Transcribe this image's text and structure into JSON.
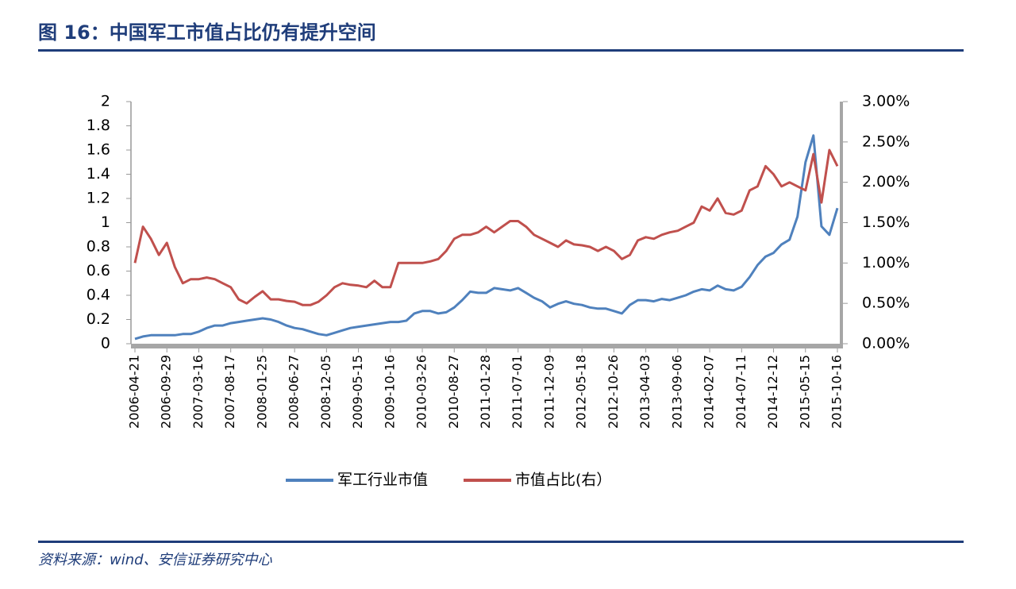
{
  "title": "图 16：中国军工市值占比仍有提升空间",
  "source": "资料来源：wind、安信证券研究中心",
  "chart_data": {
    "type": "line",
    "categories": [
      "2006-04-21",
      null,
      null,
      null,
      "2006-09-29",
      null,
      null,
      null,
      "2007-03-16",
      null,
      null,
      null,
      "2007-08-17",
      null,
      null,
      null,
      "2008-01-25",
      null,
      null,
      null,
      "2008-06-27",
      null,
      null,
      null,
      "2008-12-05",
      null,
      null,
      null,
      "2009-05-15",
      null,
      null,
      null,
      "2009-10-16",
      null,
      null,
      null,
      "2010-03-26",
      null,
      null,
      null,
      "2010-08-27",
      null,
      null,
      null,
      "2011-01-28",
      null,
      null,
      null,
      "2011-07-01",
      null,
      null,
      null,
      "2011-12-09",
      null,
      null,
      null,
      "2012-05-18",
      null,
      null,
      null,
      "2012-10-26",
      null,
      null,
      null,
      "2013-04-03",
      null,
      null,
      null,
      "2013-09-06",
      null,
      null,
      null,
      "2014-02-07",
      null,
      null,
      null,
      "2014-07-11",
      null,
      null,
      null,
      "2014-12-12",
      null,
      null,
      null,
      "2015-05-15",
      null,
      null,
      null,
      "2015-10-16"
    ],
    "series": [
      {
        "name": "军工行业市值",
        "color": "#4f81bd",
        "axis": "y",
        "values": [
          0.04,
          0.06,
          0.07,
          0.07,
          0.07,
          0.07,
          0.08,
          0.08,
          0.1,
          0.13,
          0.15,
          0.15,
          0.17,
          0.18,
          0.19,
          0.2,
          0.21,
          0.2,
          0.18,
          0.15,
          0.13,
          0.12,
          0.1,
          0.08,
          0.07,
          0.09,
          0.11,
          0.13,
          0.14,
          0.15,
          0.16,
          0.17,
          0.18,
          0.18,
          0.19,
          0.25,
          0.27,
          0.27,
          0.25,
          0.26,
          0.3,
          0.36,
          0.43,
          0.42,
          0.42,
          0.46,
          0.45,
          0.44,
          0.46,
          0.42,
          0.38,
          0.35,
          0.3,
          0.33,
          0.35,
          0.33,
          0.32,
          0.3,
          0.29,
          0.29,
          0.27,
          0.25,
          0.32,
          0.36,
          0.36,
          0.35,
          0.37,
          0.36,
          0.38,
          0.4,
          0.43,
          0.45,
          0.44,
          0.48,
          0.45,
          0.44,
          0.47,
          0.55,
          0.65,
          0.72,
          0.75,
          0.82,
          0.86,
          1.05,
          1.5,
          1.72,
          0.97,
          0.9,
          1.12
        ]
      },
      {
        "name": "市值占比(右）",
        "color": "#c0504d",
        "axis": "y2",
        "values": [
          1.0,
          1.45,
          1.3,
          1.1,
          1.25,
          0.95,
          0.75,
          0.8,
          0.8,
          0.82,
          0.8,
          0.75,
          0.7,
          0.55,
          0.5,
          0.58,
          0.65,
          0.55,
          0.55,
          0.53,
          0.52,
          0.48,
          0.48,
          0.52,
          0.6,
          0.7,
          0.75,
          0.73,
          0.72,
          0.7,
          0.78,
          0.7,
          0.7,
          1.0,
          1.0,
          1.0,
          1.0,
          1.02,
          1.05,
          1.15,
          1.3,
          1.35,
          1.35,
          1.38,
          1.45,
          1.38,
          1.45,
          1.52,
          1.52,
          1.45,
          1.35,
          1.3,
          1.25,
          1.2,
          1.28,
          1.23,
          1.22,
          1.2,
          1.15,
          1.2,
          1.15,
          1.05,
          1.1,
          1.28,
          1.32,
          1.3,
          1.35,
          1.38,
          1.4,
          1.45,
          1.5,
          1.7,
          1.65,
          1.8,
          1.62,
          1.6,
          1.65,
          1.9,
          1.95,
          2.2,
          2.1,
          1.95,
          2.0,
          1.95,
          1.9,
          2.35,
          1.75,
          2.4,
          2.2
        ]
      }
    ],
    "ylim": [
      0,
      2
    ],
    "yticks": [
      0,
      0.2,
      0.4,
      0.6,
      0.8,
      1,
      1.2,
      1.4,
      1.6,
      1.8,
      2
    ],
    "y2lim": [
      0,
      3
    ],
    "y2ticks": [
      {
        "value": 0,
        "label": "0.00%"
      },
      {
        "value": 0.5,
        "label": "0.50%"
      },
      {
        "value": 1,
        "label": "1.00%"
      },
      {
        "value": 1.5,
        "label": "1.50%"
      },
      {
        "value": 2,
        "label": "2.00%"
      },
      {
        "value": 2.5,
        "label": "2.50%"
      },
      {
        "value": 3,
        "label": "3.00%"
      }
    ],
    "legend": "bottom",
    "grid": false
  }
}
